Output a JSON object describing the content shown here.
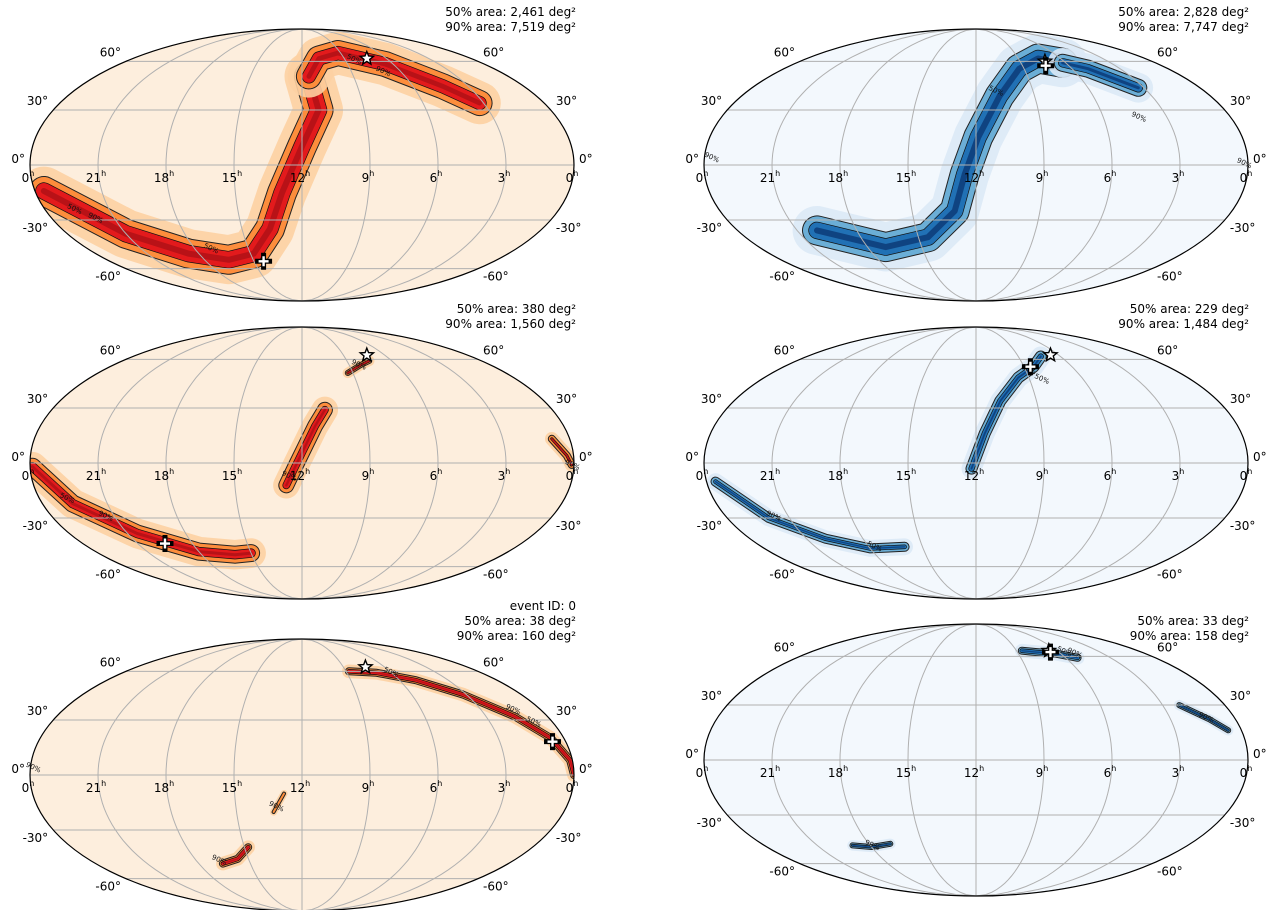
{
  "figure": {
    "ra_ticks": [
      "0",
      "21",
      "18",
      "15",
      "12",
      "9",
      "6",
      "3",
      "0"
    ],
    "ra_unit": "h",
    "dec_ticks": [
      "60°",
      "30°",
      "0°",
      "-30°",
      "-60°"
    ],
    "colors": {
      "left_map": "Reds/orange",
      "right_map": "Blues",
      "left_bg": "#fdeedd",
      "right_bg": "#f3f8fd"
    }
  },
  "panels": [
    {
      "id": "left-top",
      "annotation": [
        "50% area: 2,461 deg²",
        "90% area: 7,519 deg²"
      ],
      "contour_labels": [
        "50%",
        "90%",
        "50%",
        "90%",
        "50%"
      ]
    },
    {
      "id": "right-top",
      "annotation": [
        "50% area: 2,828 deg²",
        "90% area: 7,747 deg²"
      ],
      "contour_labels": [
        "50%",
        "90%",
        "90%",
        "90%"
      ]
    },
    {
      "id": "left-middle",
      "annotation": [
        "50% area: 380 deg²",
        "90% area: 1,560 deg²"
      ],
      "contour_labels": [
        "90%",
        "90%",
        "50%",
        "90%",
        "90%"
      ]
    },
    {
      "id": "right-middle",
      "annotation": [
        "50% area: 229 deg²",
        "90% area: 1,484 deg²"
      ],
      "contour_labels": [
        "50%",
        "90%",
        "50%",
        "90%"
      ]
    },
    {
      "id": "left-bottom",
      "annotation": [
        "event ID: 0",
        "50% area: 38 deg²",
        "90% area: 160 deg²"
      ],
      "contour_labels": [
        "50%",
        "90%",
        "50%",
        "90%",
        "90%",
        "90%"
      ]
    },
    {
      "id": "right-bottom",
      "annotation": [
        "50% area: 33 deg²",
        "90% area: 158 deg²"
      ],
      "contour_labels": [
        "50%",
        "90%",
        "90%",
        "90%"
      ]
    }
  ]
}
